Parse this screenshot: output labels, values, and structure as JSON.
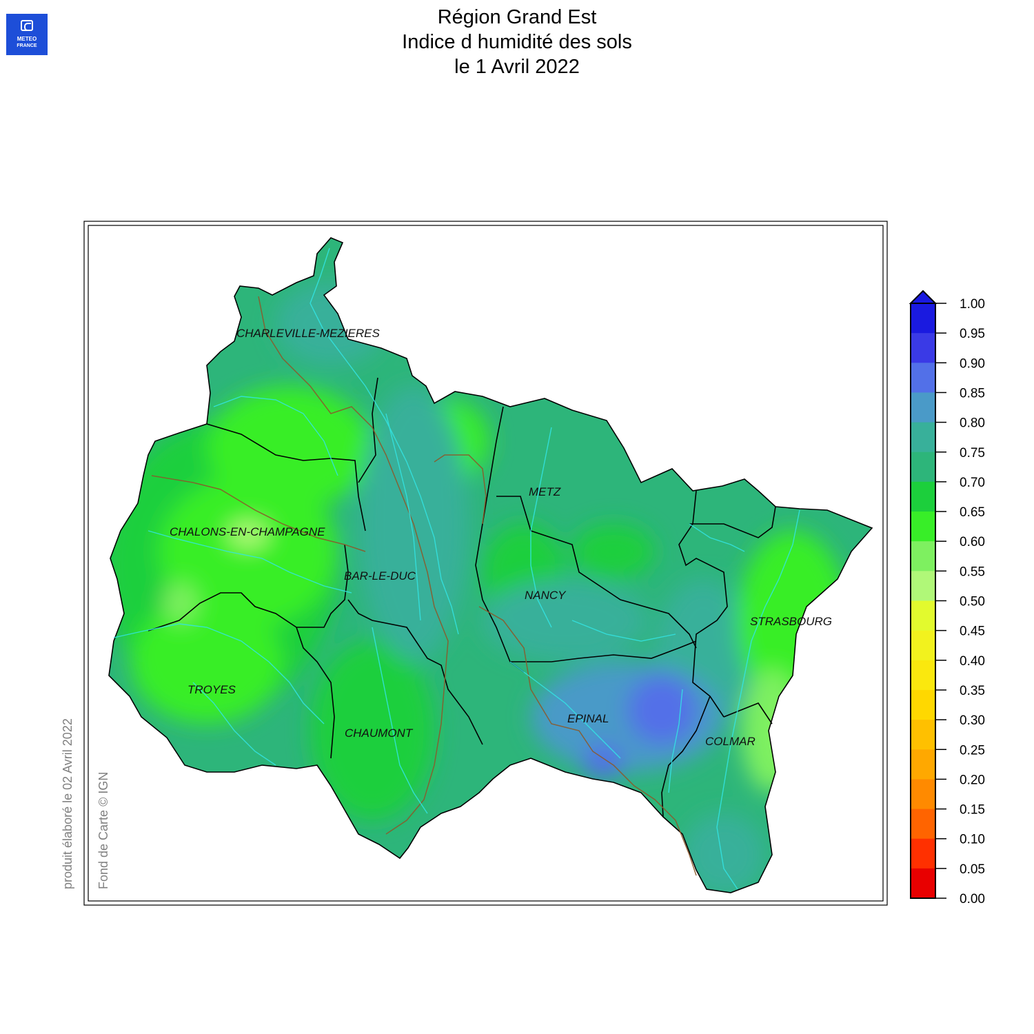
{
  "logo": {
    "line1": "METEO",
    "line2": "FRANCE"
  },
  "title": {
    "line1": "Région Grand Est",
    "line2": "Indice d humidité des sols",
    "line3": "le 1 Avril 2022"
  },
  "side": {
    "produced": "produit élaboré le 02 Avril 2022",
    "basemap": "Fond de Carte © IGN"
  },
  "cities": [
    {
      "name": "CHARLEVILLE-MEZIERES"
    },
    {
      "name": "METZ"
    },
    {
      "name": "CHALONS-EN-CHAMPAGNE"
    },
    {
      "name": "BAR-LE-DUC"
    },
    {
      "name": "NANCY"
    },
    {
      "name": "STRASBOURG"
    },
    {
      "name": "TROYES"
    },
    {
      "name": "EPINAL"
    },
    {
      "name": "CHAUMONT"
    },
    {
      "name": "COLMAR"
    }
  ],
  "legend": {
    "ticks": [
      "1.00",
      "0.95",
      "0.90",
      "0.85",
      "0.80",
      "0.75",
      "0.70",
      "0.65",
      "0.60",
      "0.55",
      "0.50",
      "0.45",
      "0.40",
      "0.35",
      "0.30",
      "0.25",
      "0.20",
      "0.15",
      "0.10",
      "0.05",
      "0.00"
    ],
    "colors": [
      "#1a1ae0",
      "#3a3ae6",
      "#5270e8",
      "#4a9ac8",
      "#38b09a",
      "#2db57a",
      "#1ccf3c",
      "#38ee28",
      "#7ef060",
      "#b0f878",
      "#e2fa2e",
      "#f2f21e",
      "#fae80e",
      "#ffd800",
      "#ffc000",
      "#ffa800",
      "#ff8a00",
      "#ff6400",
      "#ff3000",
      "#e80000"
    ],
    "over_color": "#1a1ae0"
  },
  "colors": {
    "river": "#33e5e5",
    "boundary": "#000000",
    "canal": "#8b5a2b"
  }
}
